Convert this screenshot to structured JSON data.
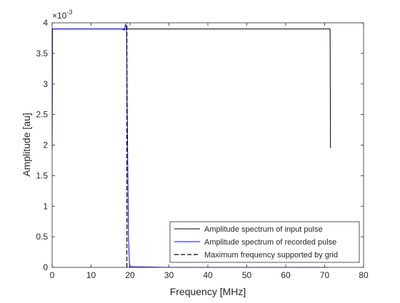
{
  "chart_data": {
    "type": "line",
    "title": "",
    "xlabel": "Frequency [MHz]",
    "ylabel": "Amplitude [au]",
    "xlim": [
      0,
      80
    ],
    "ylim": [
      0,
      0.004
    ],
    "y_exponent_label": "×10",
    "y_exponent_power": "-3",
    "grid": false,
    "legend_position": "bottom-right",
    "x_ticks": [
      0,
      10,
      20,
      30,
      40,
      50,
      60,
      70,
      80
    ],
    "x_tick_labels": [
      "0",
      "10",
      "20",
      "30",
      "40",
      "50",
      "60",
      "70",
      "80"
    ],
    "y_ticks": [
      0,
      0.0005,
      0.001,
      0.0015,
      0.002,
      0.0025,
      0.003,
      0.0035,
      0.004
    ],
    "y_tick_labels": [
      "0",
      "0.5",
      "1",
      "1.5",
      "2",
      "2.5",
      "3",
      "3.5",
      "4"
    ],
    "series": [
      {
        "name": "Amplitude spectrum of input pulse",
        "color": "#000000",
        "style": "solid",
        "x": [
          0,
          0.05,
          0.3,
          5,
          20,
          40,
          60,
          71,
          71.4,
          71.5
        ],
        "y": [
          0.00195,
          0.0039,
          0.0039,
          0.0039,
          0.0039,
          0.0039,
          0.0039,
          0.0039,
          0.0039,
          0.00195
        ]
      },
      {
        "name": "Amplitude spectrum of recorded pulse",
        "color": "#0000ff",
        "style": "solid",
        "x": [
          0,
          0.1,
          0.3,
          5,
          10,
          15,
          18,
          18.5,
          18.9,
          19.1,
          19.3,
          19.6,
          19.9,
          20.2,
          30,
          40,
          50,
          60,
          71
        ],
        "y": [
          0.00195,
          0.0039,
          0.0039,
          0.0039,
          0.0039,
          0.0039,
          0.0039,
          0.00388,
          0.00398,
          0.00392,
          0.0025,
          0.0005,
          0.0,
          1e-05,
          0.0,
          0.0,
          0.0,
          0.0,
          0.0
        ]
      },
      {
        "name": "Maximum frequency supported by grid",
        "color": "#000000",
        "style": "dashed",
        "x": [
          19.2,
          19.2
        ],
        "y": [
          0,
          0.004
        ]
      }
    ]
  }
}
